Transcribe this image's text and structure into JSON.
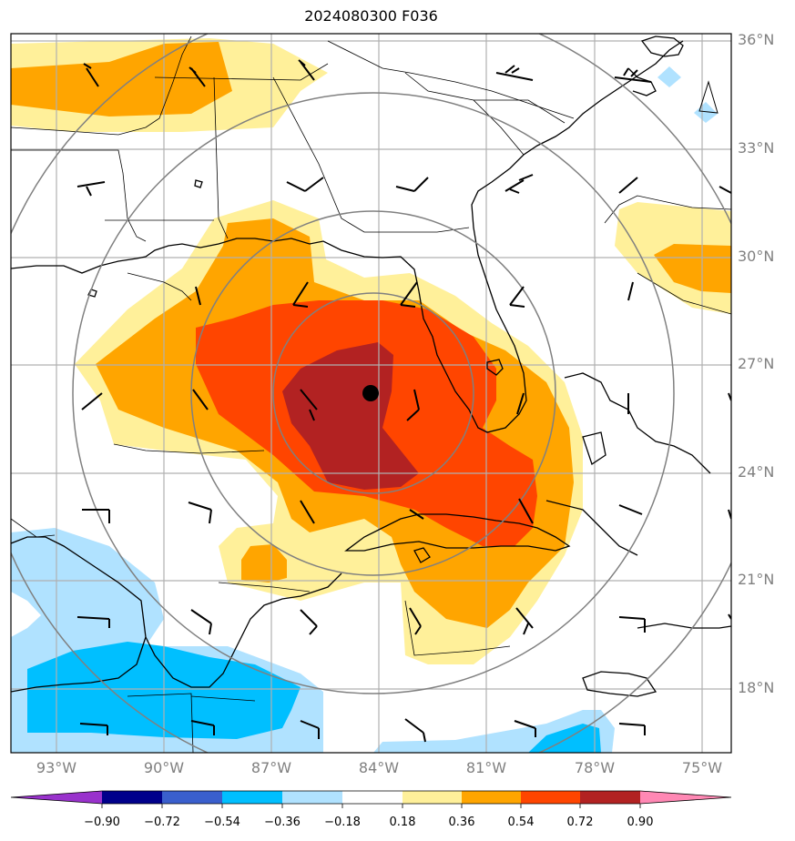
{
  "title": "2024080300 F036",
  "storm_center": {
    "lon": -84.0,
    "lat": 26.2
  },
  "extent": {
    "lon": [
      -94.3,
      -74.2
    ],
    "lat": [
      16.2,
      36.2
    ]
  },
  "lon_ticks": [
    {
      "value": -93,
      "label": "93°W"
    },
    {
      "value": -90,
      "label": "90°W"
    },
    {
      "value": -87,
      "label": "87°W"
    },
    {
      "value": -84,
      "label": "84°W"
    },
    {
      "value": -81,
      "label": "81°W"
    },
    {
      "value": -78,
      "label": "78°W"
    },
    {
      "value": -75,
      "label": "75°W"
    }
  ],
  "lat_ticks": [
    {
      "value": 36,
      "label": "36°N"
    },
    {
      "value": 33,
      "label": "33°N"
    },
    {
      "value": 30,
      "label": "30°N"
    },
    {
      "value": 27,
      "label": "27°N"
    },
    {
      "value": 24,
      "label": "24°N"
    },
    {
      "value": 21,
      "label": "21°N"
    },
    {
      "value": 18,
      "label": "18°N"
    }
  ],
  "colorbar": {
    "levels": [
      "−0.90",
      "−0.72",
      "−0.54",
      "−0.36",
      "−0.18",
      "0.18",
      "0.36",
      "0.54",
      "0.72",
      "0.90"
    ],
    "colors": {
      "below": "#9932cc",
      "c1": "#00008b",
      "c2": "#3a5fcd",
      "c3": "#00bfff",
      "c4": "#b0e2ff",
      "c5": "#ffffff",
      "c6": "#fff09a",
      "c7": "#ffa500",
      "c8": "#ff4500",
      "c9": "#b22222",
      "above": "#ff88b4"
    }
  }
}
